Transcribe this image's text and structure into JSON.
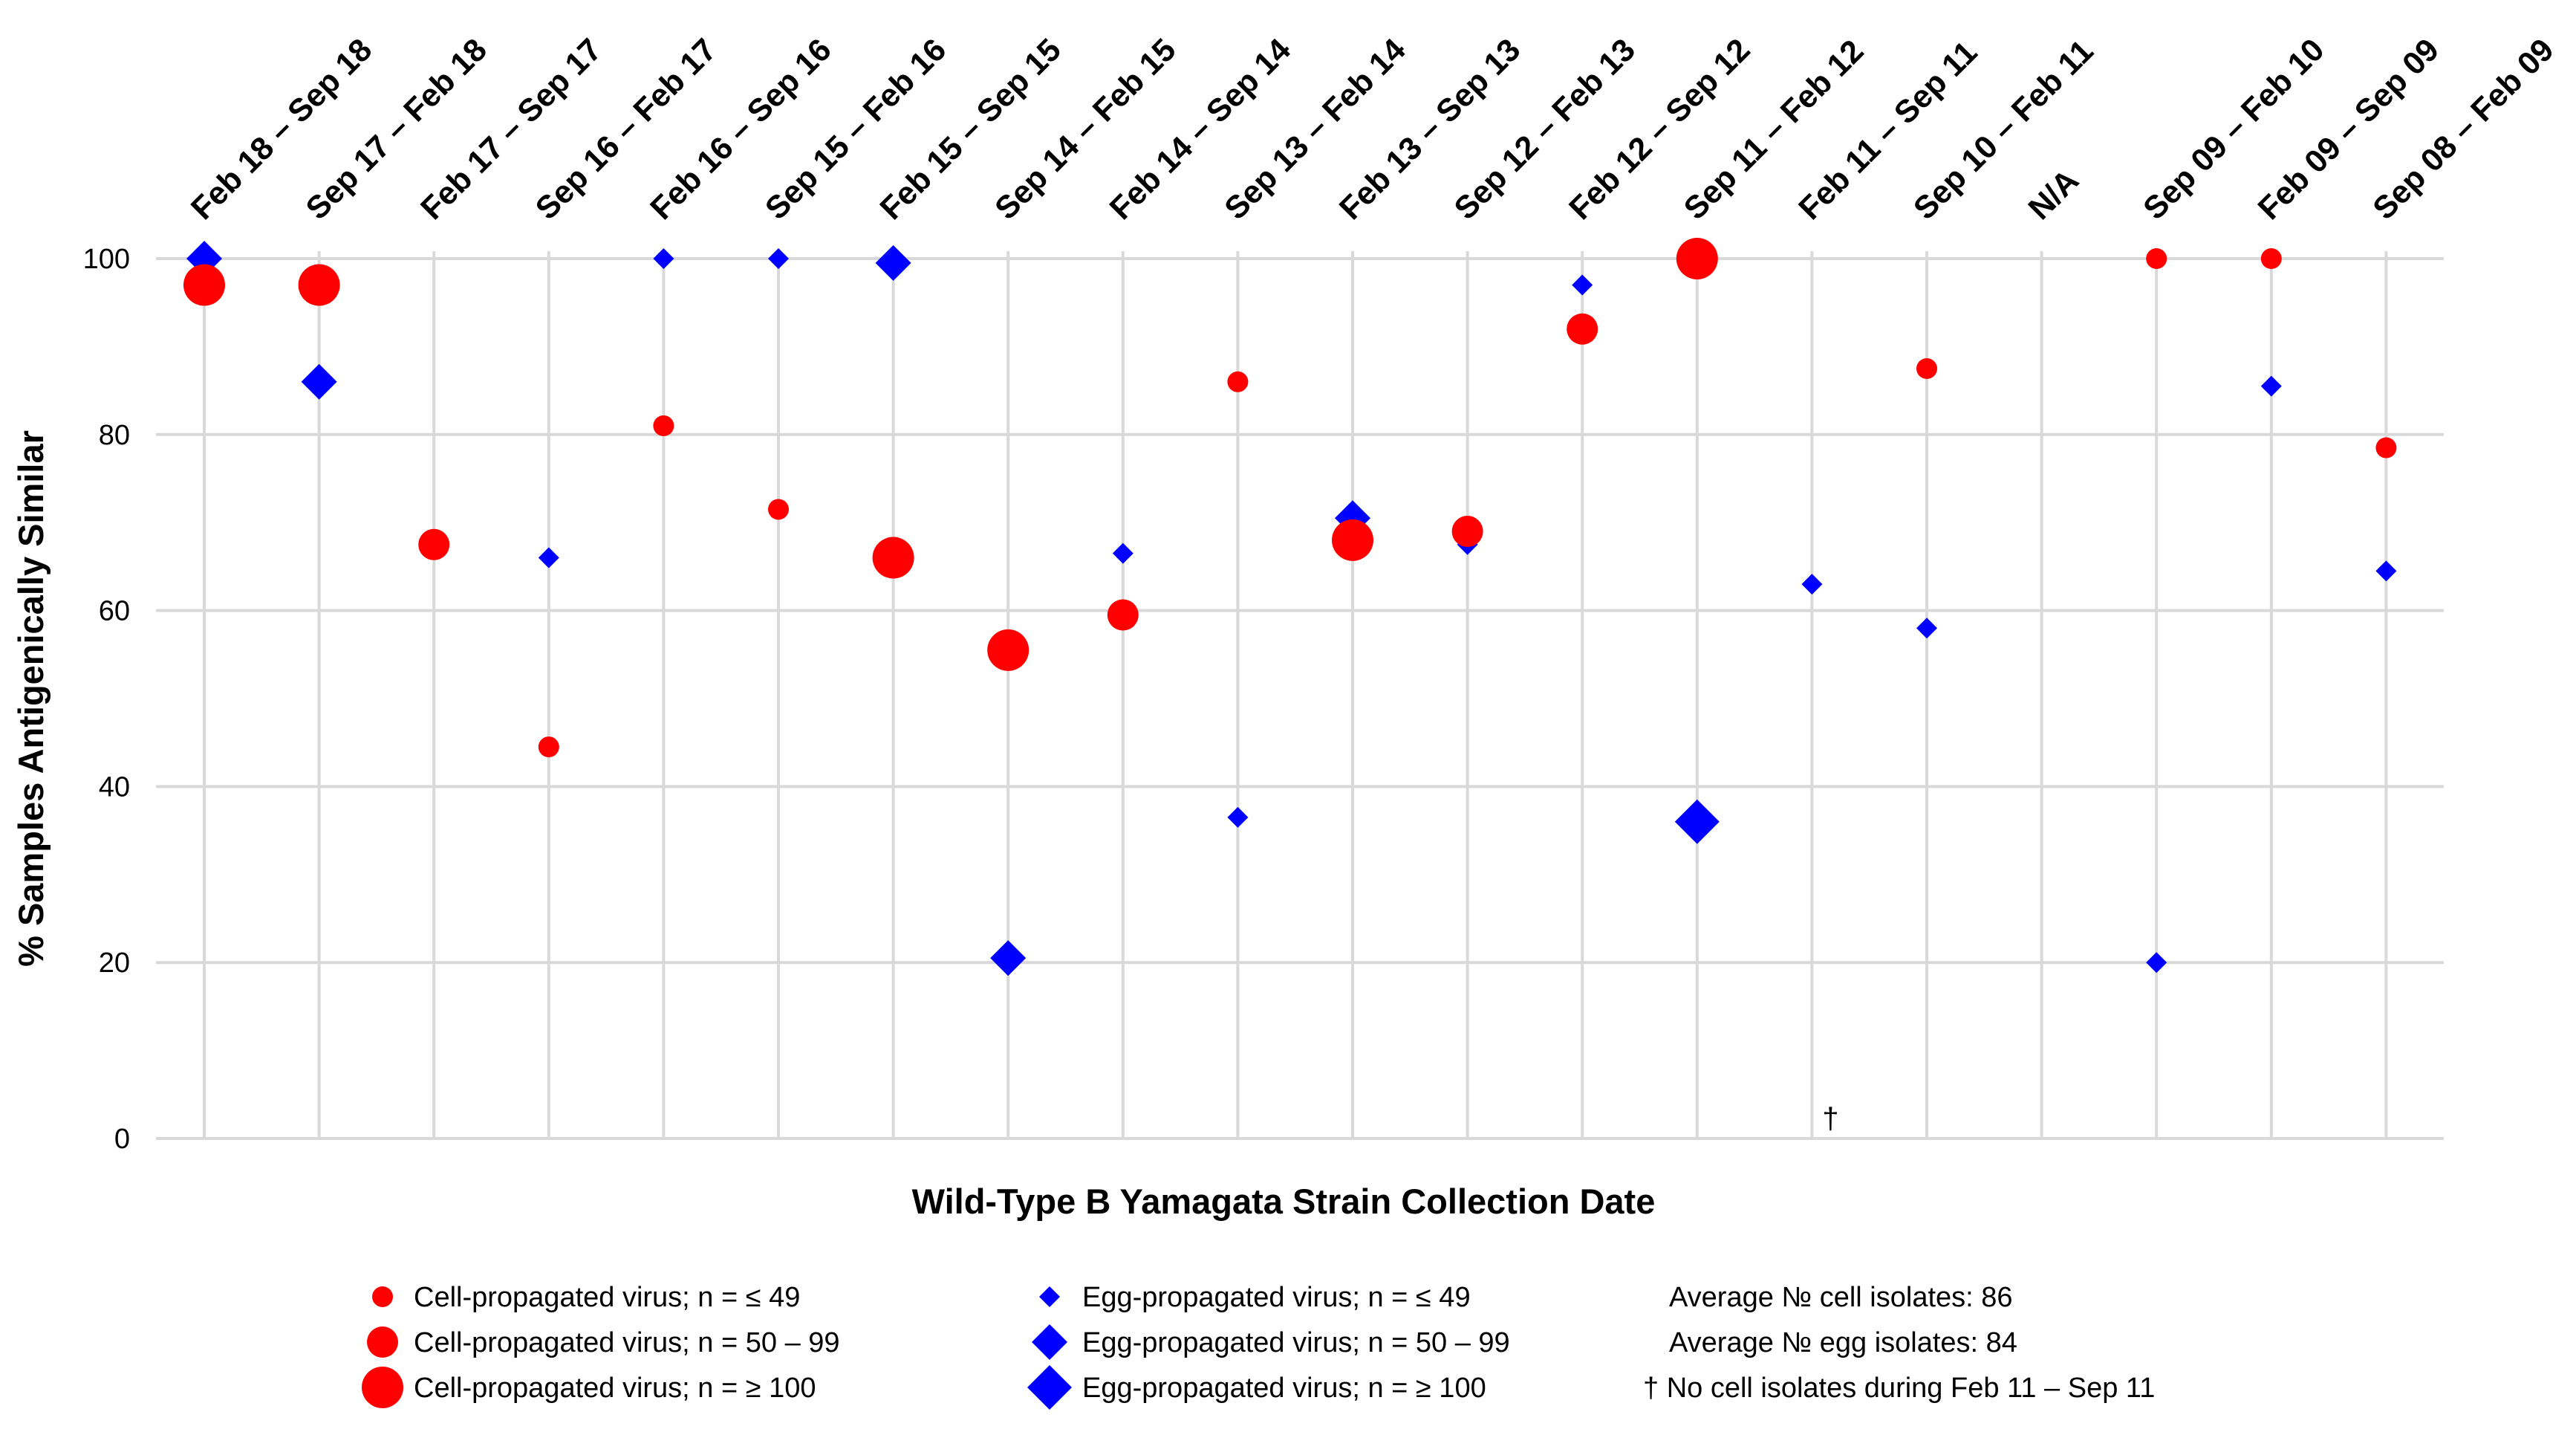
{
  "chart_data": {
    "type": "scatter",
    "title": "",
    "xlabel": "Wild-Type B Yamagata Strain Collection Date",
    "ylabel": "% Samples Antigenically Similar",
    "ylim": [
      0,
      100
    ],
    "yticks": [
      0,
      20,
      40,
      60,
      80,
      100
    ],
    "grid": true,
    "categories": [
      "Feb 18 – Sep 18",
      "Sep 17 – Feb 18",
      "Feb 17 – Sep 17",
      "Sep 16 – Feb 17",
      "Feb 16 – Sep 16",
      "Sep 15 – Feb 16",
      "Feb 15 – Sep 15",
      "Sep 14 – Feb 15",
      "Feb 14 – Sep 14",
      "Sep 13 – Feb 14",
      "Feb 13 – Sep 13",
      "Sep 12 – Feb 13",
      "Feb 12 – Sep 12",
      "Sep 11 – Feb 12",
      "Feb 11 – Sep 11",
      "Sep 10 – Feb 11",
      "N/A",
      "Sep 09 – Feb 10",
      "Feb 09 – Sep 09",
      "Sep 08 – Feb 09"
    ],
    "series": [
      {
        "name": "Cell-propagated virus",
        "marker": "circle",
        "color": "#ff0000",
        "points": [
          {
            "category": 0,
            "value": 97,
            "size": "large"
          },
          {
            "category": 1,
            "value": 97,
            "size": "large"
          },
          {
            "category": 2,
            "value": 67.5,
            "size": "medium"
          },
          {
            "category": 3,
            "value": 44.5,
            "size": "small"
          },
          {
            "category": 4,
            "value": 81,
            "size": "small"
          },
          {
            "category": 5,
            "value": 71.5,
            "size": "small"
          },
          {
            "category": 6,
            "value": 66,
            "size": "large"
          },
          {
            "category": 7,
            "value": 55.5,
            "size": "large"
          },
          {
            "category": 8,
            "value": 59.5,
            "size": "medium"
          },
          {
            "category": 9,
            "value": 86,
            "size": "small"
          },
          {
            "category": 10,
            "value": 68,
            "size": "large"
          },
          {
            "category": 11,
            "value": 69,
            "size": "medium"
          },
          {
            "category": 12,
            "value": 92,
            "size": "medium"
          },
          {
            "category": 13,
            "value": 100,
            "size": "large"
          },
          {
            "category": 15,
            "value": 87.5,
            "size": "small"
          },
          {
            "category": 17,
            "value": 100,
            "size": "small"
          },
          {
            "category": 18,
            "value": 100,
            "size": "small"
          },
          {
            "category": 19,
            "value": 78.5,
            "size": "small"
          }
        ]
      },
      {
        "name": "Egg-propagated virus",
        "marker": "diamond",
        "color": "#0000ff",
        "points": [
          {
            "category": 0,
            "value": 100,
            "size": "medium"
          },
          {
            "category": 1,
            "value": 86,
            "size": "medium"
          },
          {
            "category": 3,
            "value": 66,
            "size": "small"
          },
          {
            "category": 4,
            "value": 100,
            "size": "small"
          },
          {
            "category": 5,
            "value": 100,
            "size": "small"
          },
          {
            "category": 6,
            "value": 99.5,
            "size": "medium"
          },
          {
            "category": 7,
            "value": 20.5,
            "size": "medium"
          },
          {
            "category": 8,
            "value": 66.5,
            "size": "small"
          },
          {
            "category": 9,
            "value": 36.5,
            "size": "small"
          },
          {
            "category": 10,
            "value": 70.5,
            "size": "medium"
          },
          {
            "category": 11,
            "value": 67.5,
            "size": "small"
          },
          {
            "category": 12,
            "value": 97,
            "size": "small"
          },
          {
            "category": 13,
            "value": 36,
            "size": "large"
          },
          {
            "category": 14,
            "value": 63,
            "size": "small"
          },
          {
            "category": 15,
            "value": 58,
            "size": "small"
          },
          {
            "category": 17,
            "value": 20,
            "size": "small"
          },
          {
            "category": 18,
            "value": 85.5,
            "size": "small"
          },
          {
            "category": 19,
            "value": 64.5,
            "size": "small"
          }
        ]
      }
    ],
    "annotations": [
      {
        "text": "†",
        "category": 14,
        "value": 2
      }
    ],
    "legend": {
      "placement": "bottom",
      "entries": [
        {
          "label": "Cell-propagated virus; n = ≤ 49",
          "marker": "circle",
          "color": "#ff0000",
          "size": "small"
        },
        {
          "label": "Cell-propagated virus; n = 50 – 99",
          "marker": "circle",
          "color": "#ff0000",
          "size": "medium"
        },
        {
          "label": "Cell-propagated virus; n = ≥ 100",
          "marker": "circle",
          "color": "#ff0000",
          "size": "large"
        },
        {
          "label": "Egg-propagated virus; n = ≤ 49",
          "marker": "diamond",
          "color": "#0000ff",
          "size": "small"
        },
        {
          "label": "Egg-propagated virus; n = 50 – 99",
          "marker": "diamond",
          "color": "#0000ff",
          "size": "medium"
        },
        {
          "label": "Egg-propagated virus; n = ≥ 100",
          "marker": "diamond",
          "color": "#0000ff",
          "size": "large"
        }
      ]
    },
    "notes": [
      "Average № cell isolates: 86",
      "Average № egg isolates: 84",
      "† No cell isolates during Feb 11 – Sep 11"
    ]
  }
}
